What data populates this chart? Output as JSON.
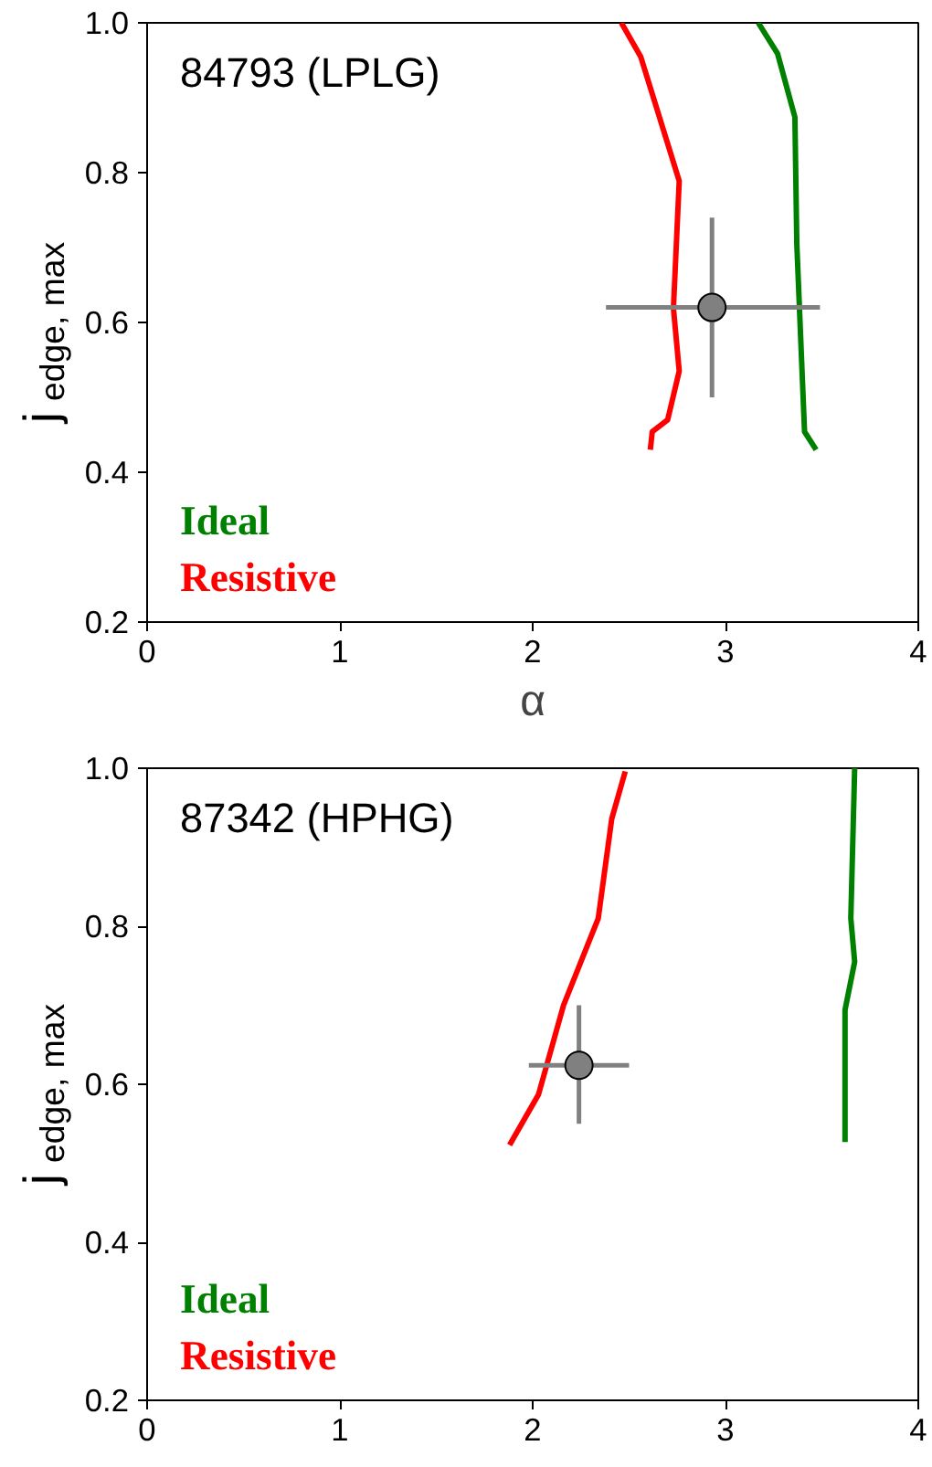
{
  "chart_data": [
    {
      "type": "line",
      "title": "84793 (LPLG)",
      "xlabel": "α",
      "ylabel": "j$_{edge, max}$",
      "xlim": [
        0,
        4
      ],
      "ylim": [
        0.2,
        1.0
      ],
      "xticks": [
        0,
        1,
        2,
        3,
        4
      ],
      "yticks": [
        {
          "value": 0.2,
          "label": "0.2"
        },
        {
          "value": 0.4,
          "label": "0.4"
        },
        {
          "value": 0.6,
          "label": "0.6"
        },
        {
          "value": 0.8,
          "label": "0.8"
        },
        {
          "value": 1.0,
          "label": "1.0"
        }
      ],
      "grid": false,
      "legend": "bottom left",
      "line_style": "solid",
      "series": [
        {
          "name": "Ideal",
          "color": "#008000",
          "x": [
            3.17,
            3.27,
            3.36,
            3.37,
            3.41,
            3.47
          ],
          "values": [
            1.0,
            0.959,
            0.874,
            0.704,
            0.454,
            0.43
          ]
        },
        {
          "name": "Resistive",
          "color": "#ff0000",
          "x": [
            2.46,
            2.56,
            2.76,
            2.73,
            2.76,
            2.7,
            2.62,
            2.61
          ],
          "values": [
            1.0,
            0.955,
            0.789,
            0.619,
            0.535,
            0.47,
            0.454,
            0.43
          ]
        },
        {
          "type": "scatter",
          "color": "#808080",
          "marker": "circle",
          "x": [
            2.93
          ],
          "values": [
            0.62
          ],
          "xerrors": [
            [
              2.38,
              3.49
            ]
          ],
          "errors": [
            [
              0.5,
              0.74
            ]
          ]
        }
      ]
    },
    {
      "type": "line",
      "title": "87342 (HPHG)",
      "ylabel": "j$_{edge, max}$",
      "xlim": [
        0,
        4
      ],
      "ylim": [
        0.2,
        1.0
      ],
      "xticks": [
        0,
        1,
        2,
        3,
        4
      ],
      "yticks": [
        {
          "value": 0.2,
          "label": "0.2"
        },
        {
          "value": 0.4,
          "label": "0.4"
        },
        {
          "value": 0.6,
          "label": "0.6"
        },
        {
          "value": 0.8,
          "label": "0.8"
        },
        {
          "value": 1.0,
          "label": "1.0"
        }
      ],
      "grid": false,
      "legend": "bottom left",
      "line_style": "solid",
      "series": [
        {
          "name": "Ideal",
          "color": "#008000",
          "x": [
            3.67,
            3.65,
            3.67,
            3.62,
            3.62
          ],
          "values": [
            1.0,
            0.81,
            0.755,
            0.694,
            0.527
          ]
        },
        {
          "name": "Resistive",
          "color": "#ff0000",
          "x": [
            2.48,
            2.41,
            2.34,
            2.16,
            2.03,
            1.88
          ],
          "values": [
            0.996,
            0.936,
            0.81,
            0.7,
            0.587,
            0.523
          ]
        },
        {
          "type": "scatter",
          "color": "#808080",
          "marker": "circle",
          "x": [
            2.24
          ],
          "values": [
            0.624
          ],
          "xerrors": [
            [
              1.98,
              2.5
            ]
          ],
          "errors": [
            [
              0.55,
              0.7
            ]
          ]
        }
      ]
    }
  ]
}
